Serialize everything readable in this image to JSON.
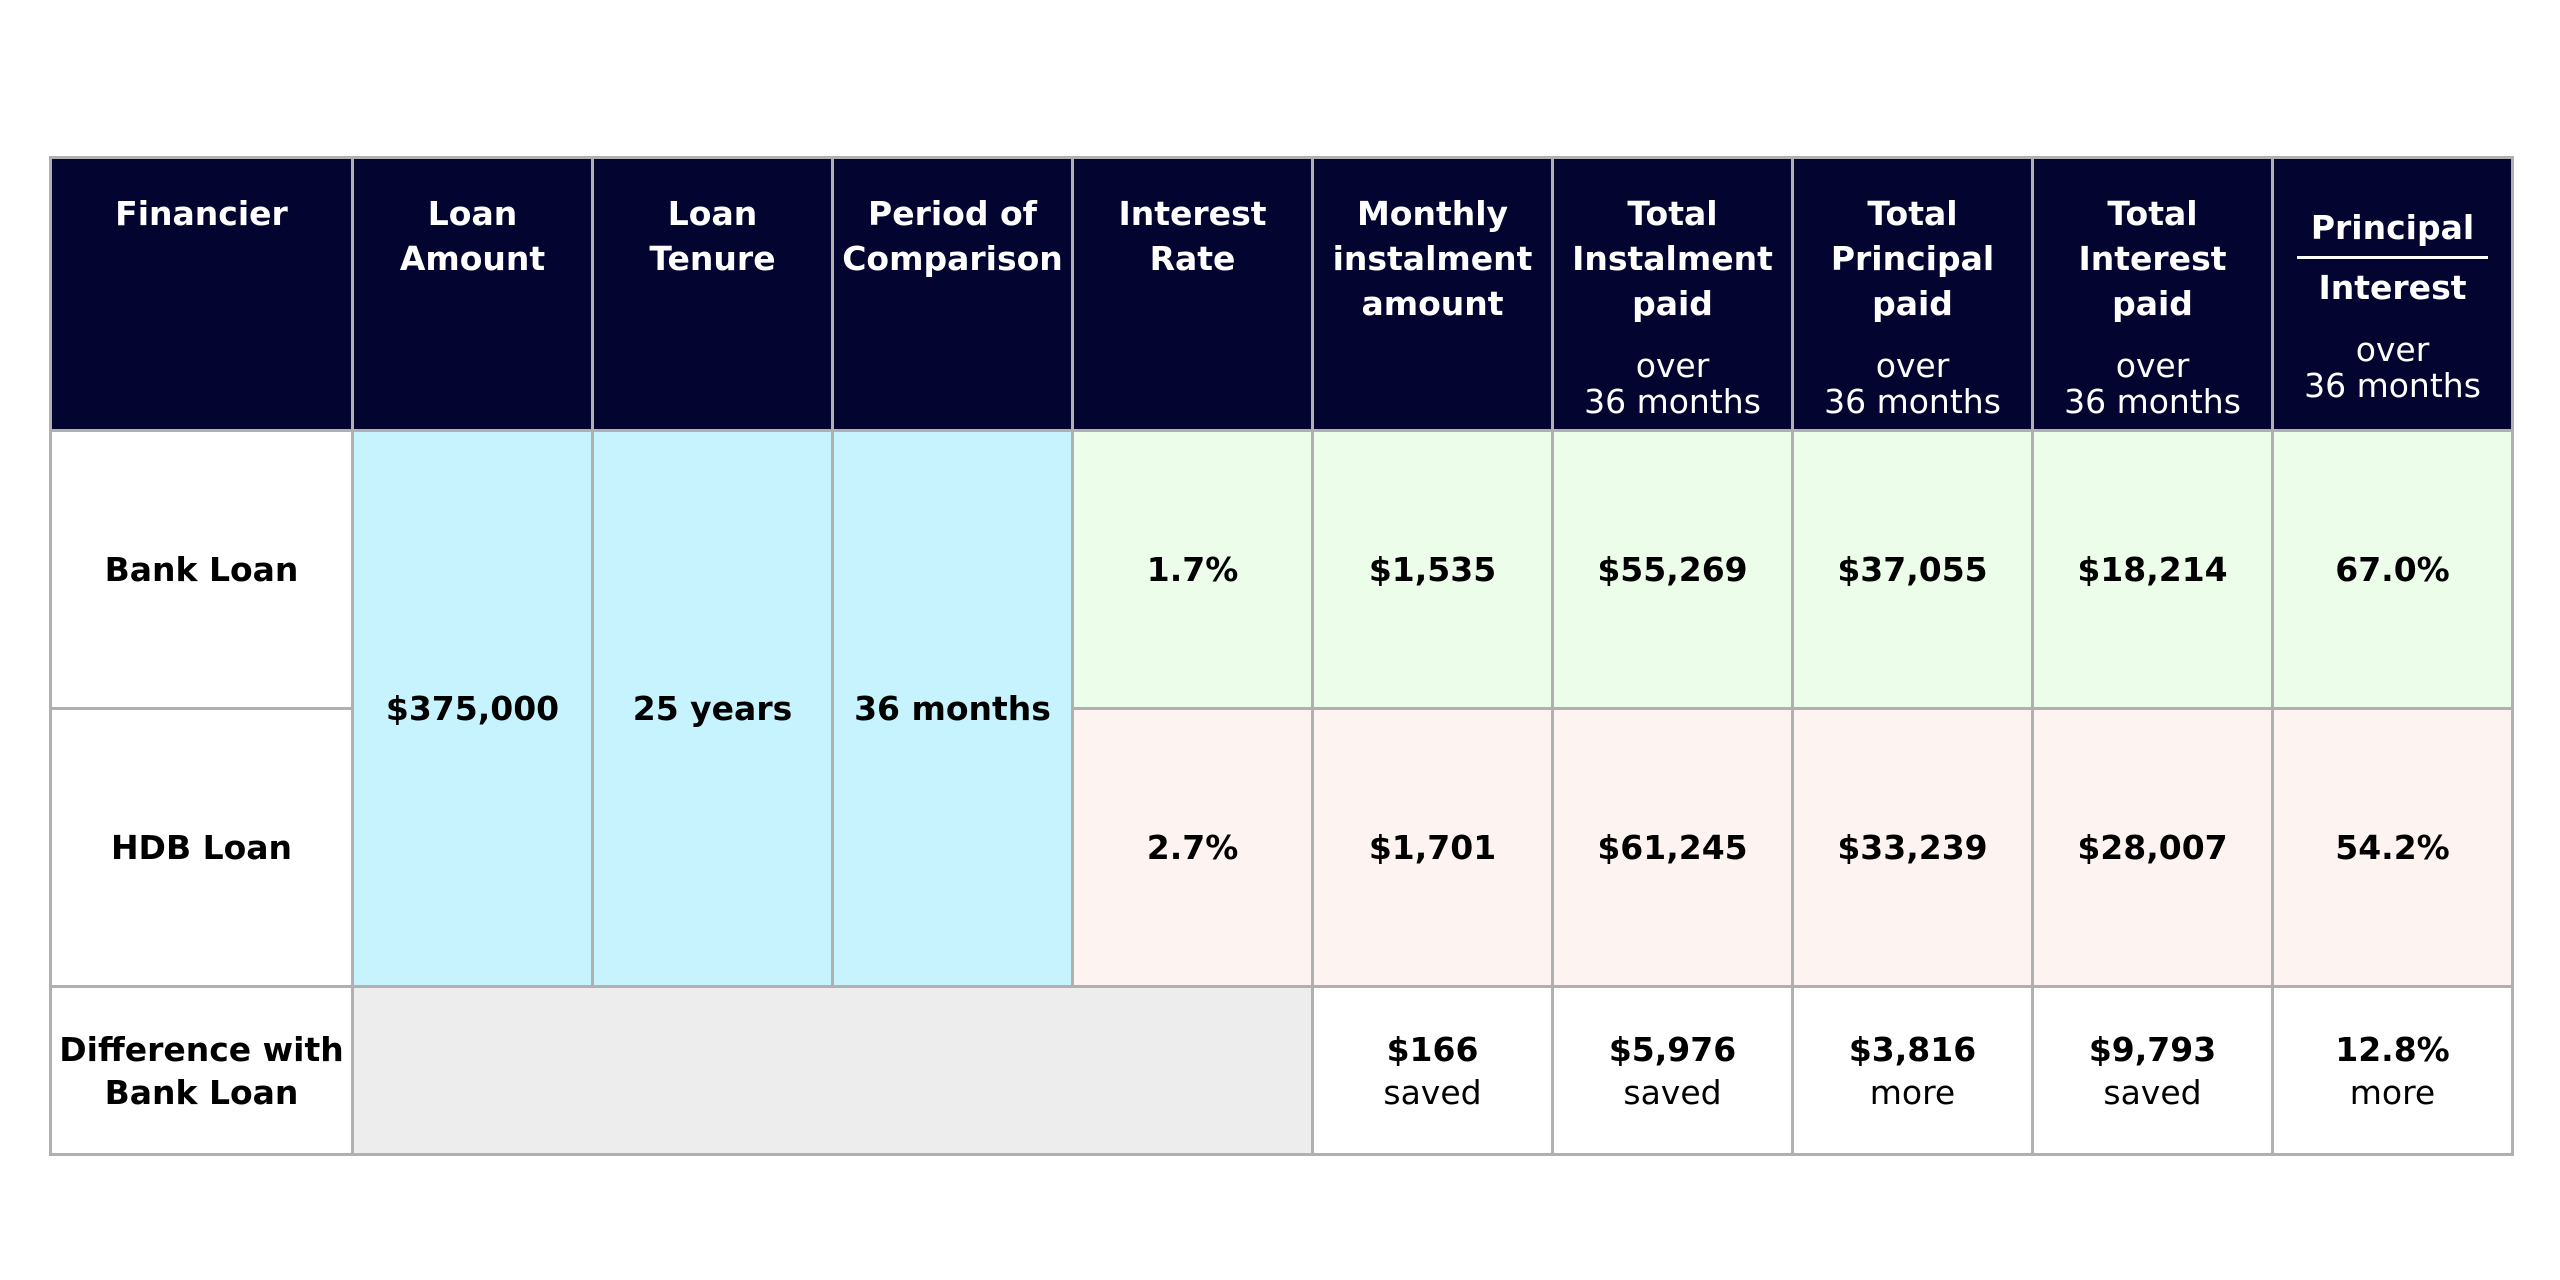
{
  "colors": {
    "header_bg": "#040431",
    "shared_inputs_bg": "#c6f3fd",
    "bank_row_bg": "#ecfdea",
    "hdb_row_bg": "#fdf4f2",
    "blank_bg": "#ededed",
    "border": "#b0b0b0"
  },
  "headers": {
    "financier": "Financier",
    "loan_amount": [
      "Loan",
      "Amount"
    ],
    "loan_tenure": [
      "Loan",
      "Tenure"
    ],
    "period": [
      "Period of",
      "Comparison"
    ],
    "interest_rate": [
      "Interest",
      "Rate"
    ],
    "monthly": [
      "Monthly",
      "instalment",
      "amount"
    ],
    "total_instalment": [
      "Total",
      "Instalment",
      "paid"
    ],
    "total_principal": [
      "Total",
      "Principal",
      "paid"
    ],
    "total_interest": [
      "Total",
      "Interest",
      "paid"
    ],
    "ratio_numerator": "Principal",
    "ratio_denominator": "Interest",
    "over": "over",
    "months": "36 months"
  },
  "shared": {
    "loan_amount": "$375,000",
    "loan_tenure": "25 years",
    "period": "36 months"
  },
  "rows": [
    {
      "financier": "Bank Loan",
      "interest_rate": "1.7%",
      "monthly": "$1,535",
      "total_instalment": "$55,269",
      "total_principal": "$37,055",
      "total_interest": "$18,214",
      "ratio": "67.0%"
    },
    {
      "financier": "HDB Loan",
      "interest_rate": "2.7%",
      "monthly": "$1,701",
      "total_instalment": "$61,245",
      "total_principal": "$33,239",
      "total_interest": "$28,007",
      "ratio": "54.2%"
    }
  ],
  "difference": {
    "label": [
      "Difference with",
      "Bank Loan"
    ],
    "monthly": {
      "value": "$166",
      "note": "saved"
    },
    "total_instalment": {
      "value": "$5,976",
      "note": "saved"
    },
    "total_principal": {
      "value": "$3,816",
      "note": "more"
    },
    "total_interest": {
      "value": "$9,793",
      "note": "saved"
    },
    "ratio": {
      "value": "12.8%",
      "note": "more"
    }
  }
}
